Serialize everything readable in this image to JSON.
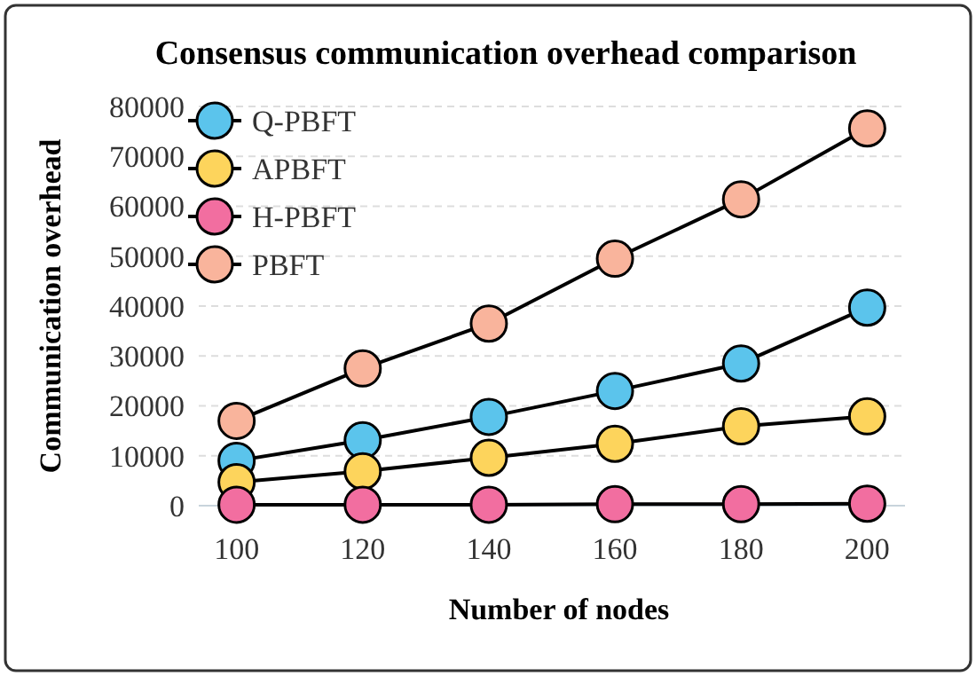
{
  "chart_data": {
    "type": "line",
    "title": "Consensus communication overhead comparison",
    "xlabel": "Number of nodes",
    "ylabel": "Communication overhead",
    "categories": [
      "100",
      "120",
      "140",
      "160",
      "180",
      "200"
    ],
    "series": [
      {
        "name": "Q-PBFT",
        "color": "#5bc4ec",
        "values": [
          9000,
          13100,
          17800,
          23000,
          28500,
          39700
        ]
      },
      {
        "name": "APBFT",
        "color": "#fdd45c",
        "values": [
          4700,
          6900,
          9600,
          12400,
          15900,
          17900
        ]
      },
      {
        "name": "H-PBFT",
        "color": "#f26ea0",
        "values": [
          200,
          200,
          200,
          300,
          300,
          400
        ]
      },
      {
        "name": "PBFT",
        "color": "#f9b49c",
        "values": [
          17000,
          27500,
          36500,
          49500,
          61400,
          75600
        ]
      }
    ],
    "ylim": [
      0,
      80000
    ],
    "yticks": [
      0,
      10000,
      20000,
      30000,
      40000,
      50000,
      60000,
      70000,
      80000
    ],
    "grid": "y",
    "legend": "top left",
    "marker": "circle",
    "line_style": "solid"
  }
}
